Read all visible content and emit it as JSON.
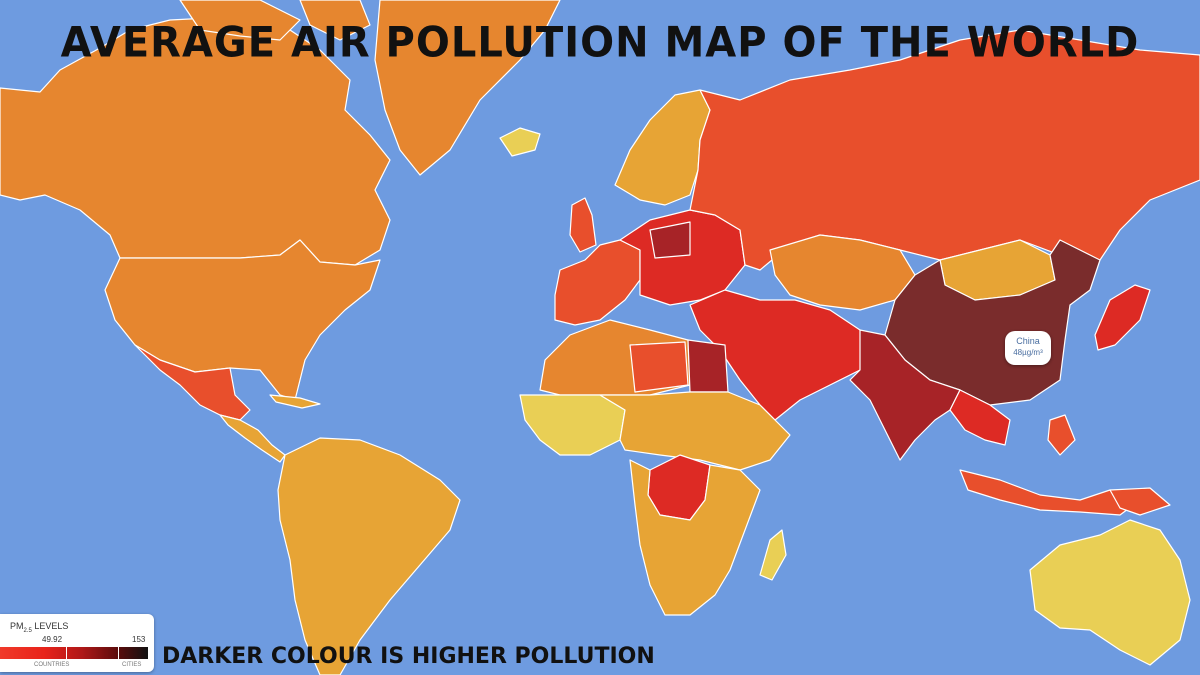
{
  "title": "AVERAGE AIR POLLUTION MAP OF THE WORLD",
  "caption": "DARKER COLOUR IS HIGHER POLLUTION",
  "legend": {
    "title_main": "PM",
    "title_sub": "2.5",
    "title_rest": " LEVELS",
    "value_low": "49.92",
    "value_high": "153",
    "label_left": "COUNTRIES",
    "label_right": "CITIES"
  },
  "tooltip": {
    "country": "China",
    "value": "48µg/m³"
  },
  "colors": {
    "ocean": "#6e9be0",
    "yellow": "#e9cf55",
    "light_orange": "#e7a435",
    "orange": "#e6862f",
    "red_orange": "#e84f2c",
    "red": "#dd2a24",
    "dark_red": "#a72327",
    "maroon": "#7a2c2c",
    "land_ice": "#f5f5f5"
  },
  "regions": [
    {
      "name": "canada-alaska",
      "level": "orange"
    },
    {
      "name": "greenland",
      "level": "orange"
    },
    {
      "name": "usa",
      "level": "orange"
    },
    {
      "name": "mexico",
      "level": "red_orange"
    },
    {
      "name": "central-america",
      "level": "light_orange"
    },
    {
      "name": "south-america",
      "level": "light_orange"
    },
    {
      "name": "iceland",
      "level": "yellow"
    },
    {
      "name": "scandinavia",
      "level": "light_orange"
    },
    {
      "name": "western-europe",
      "level": "red_orange"
    },
    {
      "name": "central-europe",
      "level": "red"
    },
    {
      "name": "russia",
      "level": "red_orange"
    },
    {
      "name": "kazakhstan",
      "level": "orange"
    },
    {
      "name": "mongolia",
      "level": "light_orange"
    },
    {
      "name": "china",
      "level": "maroon"
    },
    {
      "name": "middle-east",
      "level": "red"
    },
    {
      "name": "india",
      "level": "dark_red"
    },
    {
      "name": "north-africa",
      "level": "orange"
    },
    {
      "name": "egypt",
      "level": "dark_red"
    },
    {
      "name": "west-africa",
      "level": "yellow"
    },
    {
      "name": "central-africa",
      "level": "light_orange"
    },
    {
      "name": "drc",
      "level": "red"
    },
    {
      "name": "southern-africa",
      "level": "light_orange"
    },
    {
      "name": "madagascar",
      "level": "yellow"
    },
    {
      "name": "southeast-asia",
      "level": "red"
    },
    {
      "name": "japan-korea",
      "level": "red"
    },
    {
      "name": "indonesia",
      "level": "red_orange"
    },
    {
      "name": "australia",
      "level": "yellow"
    }
  ]
}
